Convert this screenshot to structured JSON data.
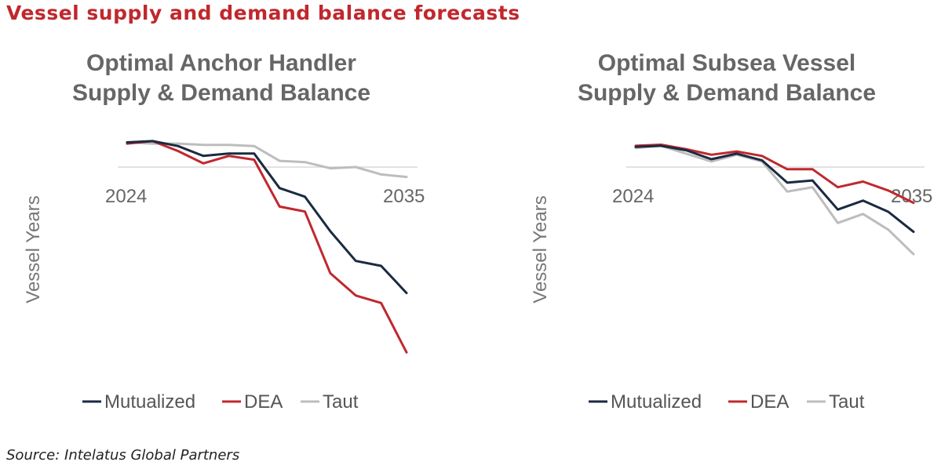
{
  "page": {
    "title": "Vessel supply and demand balance forecasts",
    "source": "Source: Intelatus Global Partners"
  },
  "colors": {
    "title": "#c0282d",
    "Mutualized": "#1b2a41",
    "DEA": "#c0282d",
    "Taut": "#bdbdbd",
    "baseline": "#d9d9d9"
  },
  "chart_data": [
    {
      "type": "line",
      "title_lines": [
        "Optimal Anchor Handler",
        "Supply & Demand Balance"
      ],
      "ylabel": "Vessel Years",
      "x": [
        2024,
        2025,
        2026,
        2027,
        2028,
        2029,
        2030,
        2031,
        2032,
        2033,
        2034,
        2035
      ],
      "x_tick_labels": [
        "2024",
        "2035"
      ],
      "ylim": [
        -8,
        1.2
      ],
      "grid": false,
      "legend_position": "bottom",
      "series": [
        {
          "name": "Mutualized",
          "values": [
            1.0,
            1.05,
            0.85,
            0.45,
            0.55,
            0.55,
            -0.85,
            -1.2,
            -2.6,
            -3.8,
            -4.0,
            -5.1
          ]
        },
        {
          "name": "DEA",
          "values": [
            0.95,
            1.05,
            0.65,
            0.15,
            0.45,
            0.3,
            -1.6,
            -1.8,
            -4.3,
            -5.2,
            -5.5,
            -7.5
          ]
        },
        {
          "name": "Taut",
          "values": [
            1.0,
            0.95,
            0.95,
            0.9,
            0.9,
            0.85,
            0.25,
            0.2,
            -0.05,
            0.0,
            -0.3,
            -0.4
          ]
        }
      ]
    },
    {
      "type": "line",
      "title_lines": [
        "Optimal Subsea Vessel",
        "Supply & Demand Balance"
      ],
      "ylabel": "Vessel Years",
      "x": [
        2024,
        2025,
        2026,
        2027,
        2028,
        2029,
        2030,
        2031,
        2032,
        2033,
        2034,
        2035
      ],
      "x_tick_labels": [
        "2024",
        "2035"
      ],
      "ylim": [
        -5.5,
        1.2
      ],
      "grid": false,
      "legend_position": "bottom",
      "series": [
        {
          "name": "Mutualized",
          "values": [
            0.9,
            0.95,
            0.75,
            0.35,
            0.6,
            0.3,
            -0.7,
            -0.6,
            -1.9,
            -1.5,
            -2.0,
            -2.9
          ]
        },
        {
          "name": "DEA",
          "values": [
            0.95,
            1.0,
            0.8,
            0.55,
            0.7,
            0.5,
            -0.1,
            -0.1,
            -0.9,
            -0.65,
            -1.05,
            -1.6
          ]
        },
        {
          "name": "Taut",
          "values": [
            0.85,
            0.95,
            0.6,
            0.25,
            0.55,
            0.25,
            -1.1,
            -0.9,
            -2.5,
            -2.1,
            -2.8,
            -3.9
          ]
        }
      ]
    }
  ]
}
